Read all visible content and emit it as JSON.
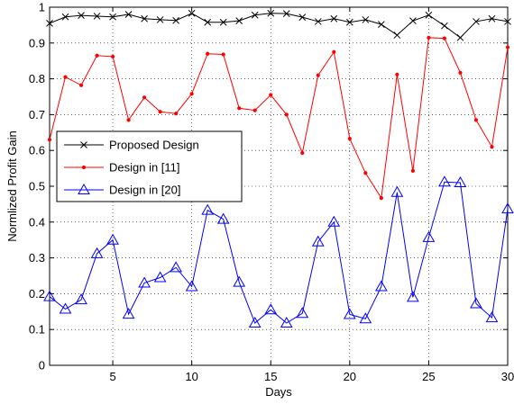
{
  "chart_data": {
    "type": "line",
    "xlabel": "Days",
    "ylabel": "Normlized Profit Gain",
    "xlim": [
      1,
      30
    ],
    "ylim": [
      0,
      1
    ],
    "xticks": [
      5,
      10,
      15,
      20,
      25,
      30
    ],
    "yticks": [
      0,
      0.1,
      0.2,
      0.3,
      0.4,
      0.5,
      0.6,
      0.7,
      0.8,
      0.9,
      1
    ],
    "xtick_labels": [
      "5",
      "10",
      "15",
      "20",
      "25",
      "30"
    ],
    "ytick_labels": [
      "0",
      "0.1",
      "0.2",
      "0.3",
      "0.4",
      "0.5",
      "0.6",
      "0.7",
      "0.8",
      "0.9",
      "1"
    ],
    "grid": true,
    "legend_position": "center-left",
    "x": [
      1,
      2,
      3,
      4,
      5,
      6,
      7,
      8,
      9,
      10,
      11,
      12,
      13,
      14,
      15,
      16,
      17,
      18,
      19,
      20,
      21,
      22,
      23,
      24,
      25,
      26,
      27,
      28,
      29,
      30
    ],
    "series": [
      {
        "name": "Proposed Design",
        "color": "#000000",
        "marker": "x",
        "values": [
          0.955,
          0.973,
          0.977,
          0.975,
          0.973,
          0.98,
          0.968,
          0.965,
          0.963,
          0.983,
          0.958,
          0.958,
          0.962,
          0.978,
          0.983,
          0.982,
          0.972,
          0.96,
          0.968,
          0.958,
          0.965,
          0.952,
          0.922,
          0.962,
          0.978,
          0.948,
          0.915,
          0.96,
          0.968,
          0.96
        ]
      },
      {
        "name": "Design in [11]",
        "color": "#ff0000",
        "marker": "dot",
        "values": [
          0.63,
          0.805,
          0.782,
          0.865,
          0.862,
          0.685,
          0.748,
          0.708,
          0.703,
          0.758,
          0.87,
          0.868,
          0.718,
          0.712,
          0.755,
          0.7,
          0.593,
          0.81,
          0.875,
          0.633,
          0.537,
          0.467,
          0.812,
          0.543,
          0.915,
          0.913,
          0.817,
          0.685,
          0.61,
          0.888
        ]
      },
      {
        "name": "Design in [20]",
        "color": "#0000ff",
        "marker": "triangle",
        "values": [
          0.192,
          0.157,
          0.183,
          0.312,
          0.35,
          0.143,
          0.23,
          0.245,
          0.273,
          0.22,
          0.433,
          0.408,
          0.232,
          0.118,
          0.155,
          0.118,
          0.145,
          0.345,
          0.4,
          0.142,
          0.13,
          0.22,
          0.483,
          0.19,
          0.357,
          0.512,
          0.51,
          0.172,
          0.133,
          0.437
        ]
      }
    ]
  }
}
